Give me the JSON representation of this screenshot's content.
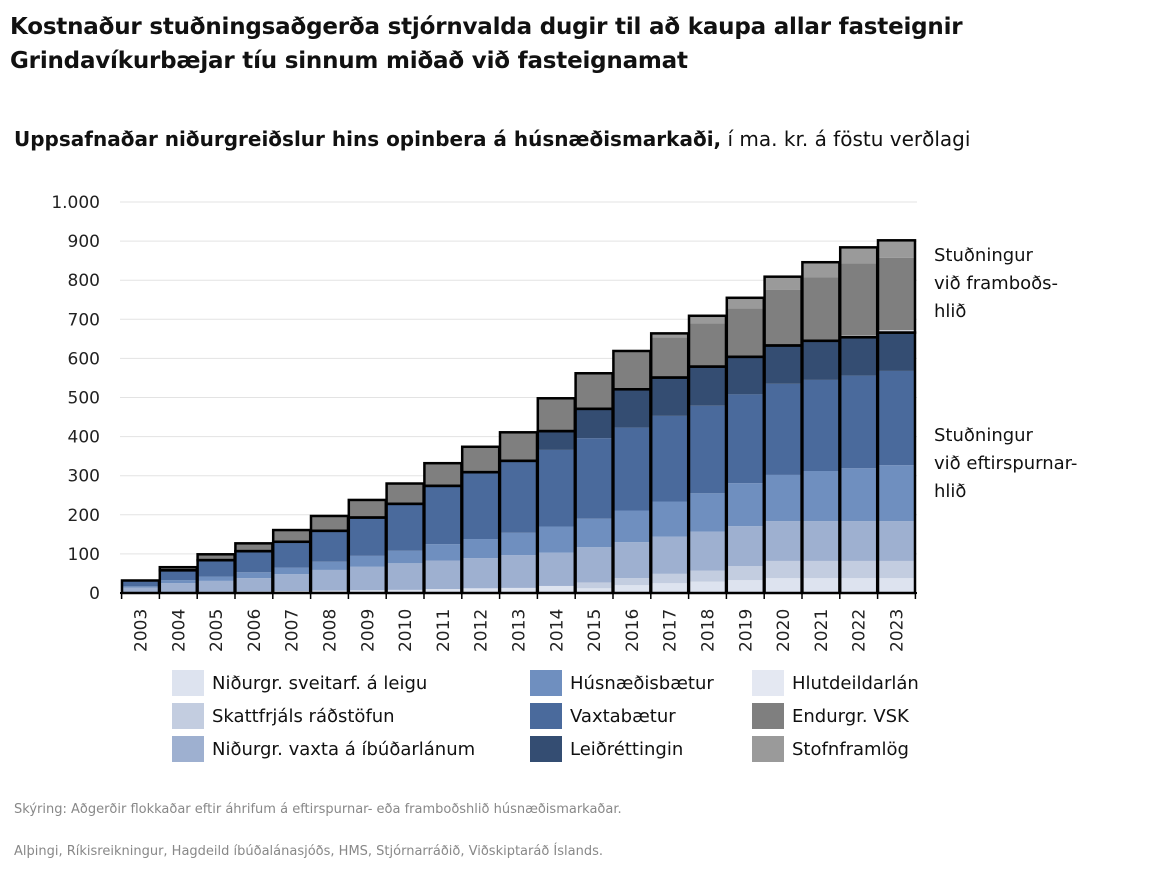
{
  "title": [
    "Kostnaður stuðningsaðgerða stjórnvalda dugir til að kaupa allar fasteignir",
    "Grindavíkurbæjar tíu sinnum miðað við fasteignamat"
  ],
  "subtitle": {
    "bold": "Uppsafnaðar niðurgreiðslur hins opinbera á húsnæðismarkaði,",
    "normal": " í ma. kr. á föstu verðlagi"
  },
  "annotations": {
    "supply": [
      "Stuðningur",
      "við framboðs-",
      "hlið"
    ],
    "demand": [
      "Stuðningur",
      "við eftirspurnar-",
      "hlið"
    ]
  },
  "notes": {
    "explanation": "Skýring: Aðgerðir flokkaðar eftir áhrifum á eftirspurnar- eða framboðshlið húsnæðismarkaðar.",
    "sources": "Alþingi, Ríkisreikningur, Hagdeild íbúðalánasjóðs, HMS, Stjórnarráðið, Viðskiptaráð Íslands."
  },
  "chart_data": {
    "type": "bar",
    "stacked": true,
    "title": "Uppsafnaðar niðurgreiðslur hins opinbera á húsnæðismarkaði, í ma. kr. á föstu verðlagi",
    "xlabel": "",
    "ylabel": "",
    "ylim": [
      0,
      1000
    ],
    "yticks": [
      0,
      100,
      200,
      300,
      400,
      500,
      600,
      700,
      800,
      900,
      1000
    ],
    "ytick_labels": [
      "0",
      "100",
      "200",
      "300",
      "400",
      "500",
      "600",
      "700",
      "800",
      "900",
      "1.000"
    ],
    "grid": true,
    "legend_position": "bottom",
    "categories": [
      "2003",
      "2004",
      "2005",
      "2006",
      "2007",
      "2008",
      "2009",
      "2010",
      "2011",
      "2012",
      "2013",
      "2014",
      "2015",
      "2016",
      "2017",
      "2018",
      "2019",
      "2020",
      "2021",
      "2022",
      "2023"
    ],
    "series": [
      {
        "name": "Niðurgr. sveitarf. á leigu",
        "group": "demand",
        "color": "#dde3ef",
        "values": [
          2,
          2,
          3,
          4,
          5,
          6,
          7,
          8,
          10,
          12,
          13,
          18,
          12,
          20,
          25,
          29,
          33,
          38,
          38,
          38,
          38
        ]
      },
      {
        "name": "Skattfrjáls ráðstöfun",
        "group": "demand",
        "color": "#c3cde0",
        "values": [
          0,
          0,
          0,
          0,
          0,
          0,
          0,
          0,
          0,
          0,
          0,
          0,
          15,
          18,
          24,
          28,
          36,
          44,
          44,
          44,
          44
        ]
      },
      {
        "name": "Niðurgr. vaxta á íbúðarlánum",
        "group": "demand",
        "color": "#9eb0d0",
        "values": [
          12,
          23,
          28,
          34,
          43,
          53,
          60,
          68,
          73,
          77,
          84,
          85,
          90,
          92,
          95,
          100,
          102,
          102,
          102,
          102,
          102
        ]
      },
      {
        "name": "Húsnæðisbætur",
        "group": "demand",
        "color": "#6f8fbf",
        "values": [
          3,
          8,
          11,
          15,
          17,
          21,
          28,
          32,
          42,
          49,
          57,
          67,
          73,
          81,
          90,
          98,
          110,
          118,
          128,
          135,
          143
        ]
      },
      {
        "name": "Vaxtabætur",
        "group": "demand",
        "color": "#4a6a9c",
        "values": [
          15,
          25,
          42,
          54,
          66,
          79,
          98,
          120,
          149,
          171,
          184,
          196,
          206,
          212,
          219,
          224,
          227,
          233,
          233,
          237,
          241
        ]
      },
      {
        "name": "Leiðréttingin",
        "group": "demand",
        "color": "#344d72",
        "values": [
          0,
          0,
          0,
          0,
          0,
          0,
          0,
          0,
          0,
          0,
          0,
          48,
          75,
          98,
          98,
          100,
          96,
          98,
          100,
          98,
          98
        ]
      },
      {
        "name": "Hlutdeildarlán",
        "group": "supply",
        "color": "#e4e8f2",
        "values": [
          0,
          0,
          0,
          0,
          0,
          0,
          0,
          0,
          0,
          0,
          0,
          0,
          0,
          0,
          0,
          0,
          0,
          0,
          0,
          4,
          6
        ]
      },
      {
        "name": "Endurgr. VSK",
        "group": "supply",
        "color": "#7f7f7f",
        "values": [
          0,
          8,
          15,
          20,
          30,
          38,
          45,
          52,
          58,
          65,
          73,
          84,
          91,
          98,
          103,
          111,
          124,
          142,
          162,
          185,
          185
        ]
      },
      {
        "name": "Stofnframlög",
        "group": "supply",
        "color": "#9a9a9a",
        "values": [
          0,
          0,
          0,
          0,
          0,
          0,
          0,
          0,
          0,
          0,
          0,
          0,
          0,
          0,
          10,
          19,
          27,
          34,
          39,
          41,
          45
        ]
      }
    ]
  }
}
